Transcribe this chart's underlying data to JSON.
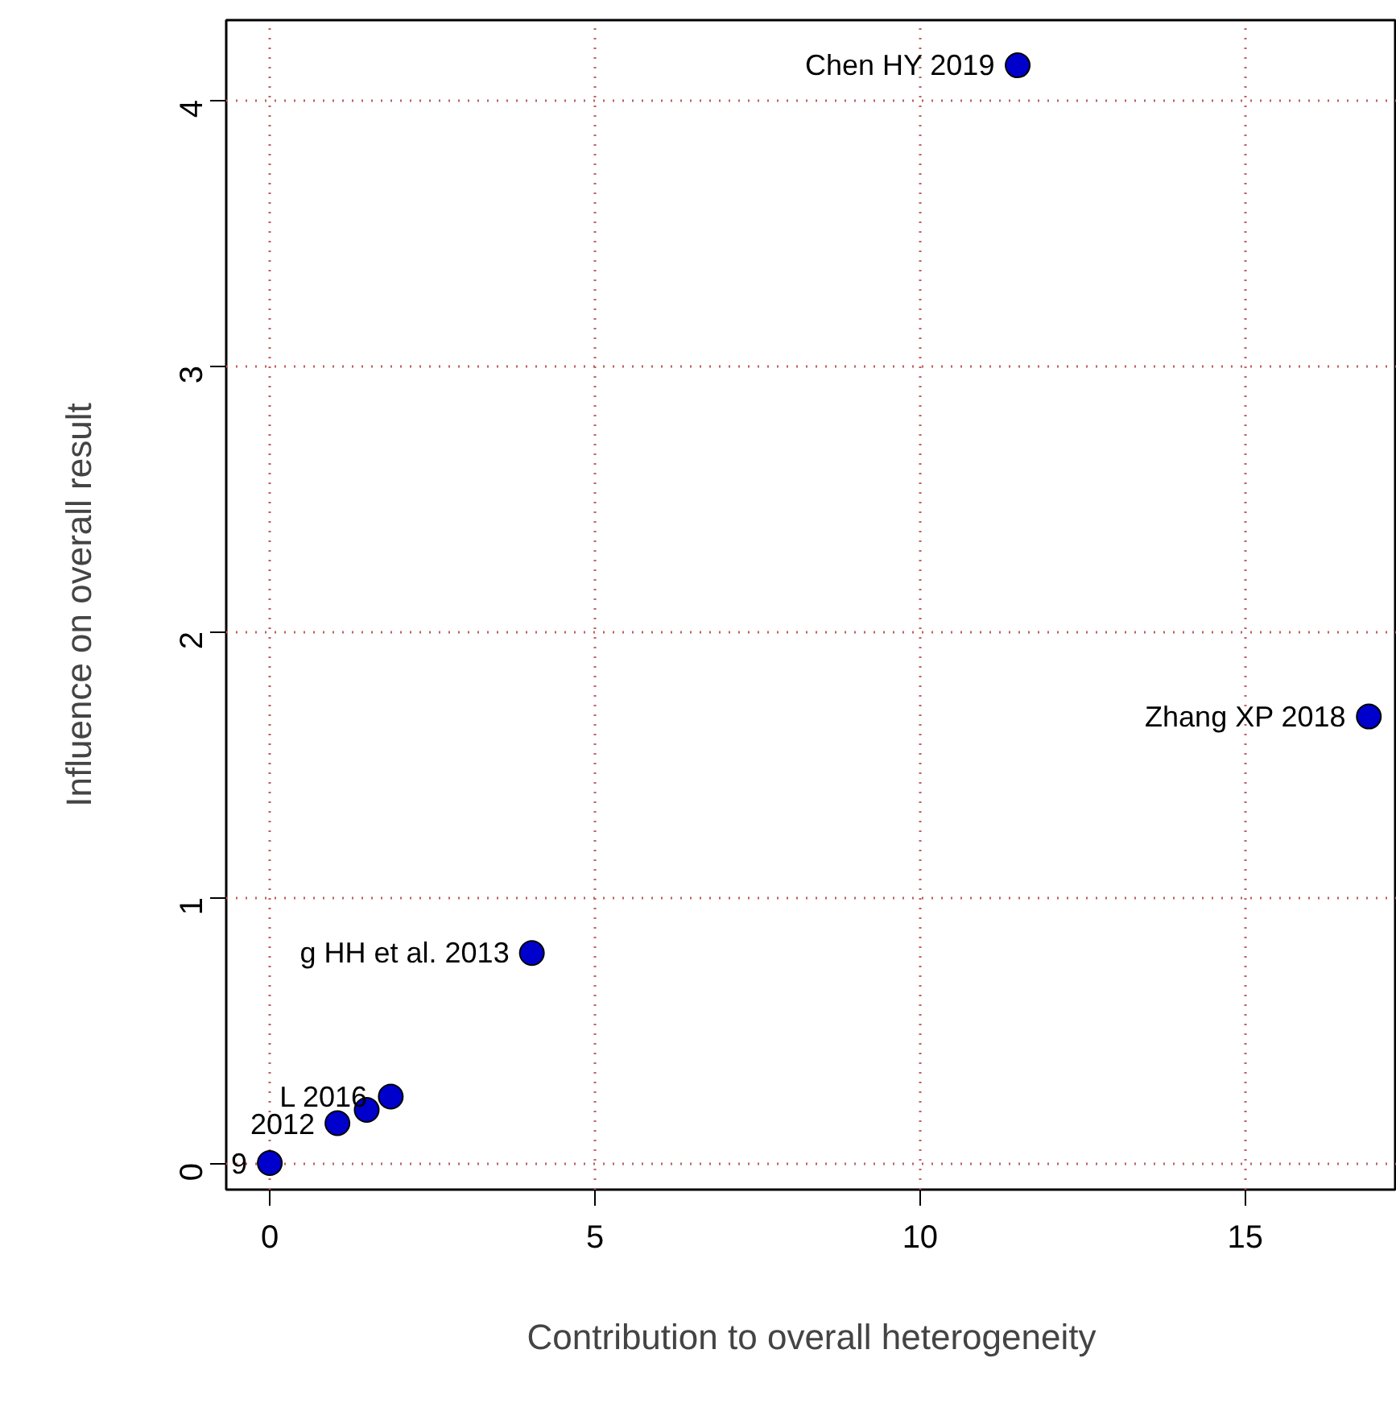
{
  "chart_data": {
    "type": "scatter",
    "xlabel": "Contribution to overall heterogeneity",
    "ylabel": "Influence on overall result",
    "x": [
      11.5,
      16.9,
      4.03,
      1.86,
      1.49,
      1.04,
      0
    ],
    "series": [
      {
        "color": "#0000cc",
        "values": [
          4.13,
          1.68,
          0.79,
          0.25,
          0.2,
          0.15,
          0
        ]
      }
    ],
    "marker": "circle",
    "xlim": [
      -0.67,
      17.33
    ],
    "ylim": [
      -0.1,
      4.3
    ],
    "xticks": [
      0,
      5,
      10,
      15
    ],
    "yticks": [
      0,
      1,
      2,
      3,
      4
    ],
    "grid": true,
    "annotations": [
      {
        "text": "Chen HY 2019",
        "x": 11.5,
        "y": 4.13
      },
      {
        "text": "Zhang XP 2018",
        "x": 16.9,
        "y": 1.68
      },
      {
        "text": "g HH et al. 2013",
        "x": 4.03,
        "y": 0.79
      },
      {
        "text": "L 2016",
        "x": 1.86,
        "y": 0.25
      },
      {
        "text": "2012",
        "x": 1.04,
        "y": 0.15
      },
      {
        "text": "9",
        "x": 0,
        "y": 0
      }
    ]
  }
}
